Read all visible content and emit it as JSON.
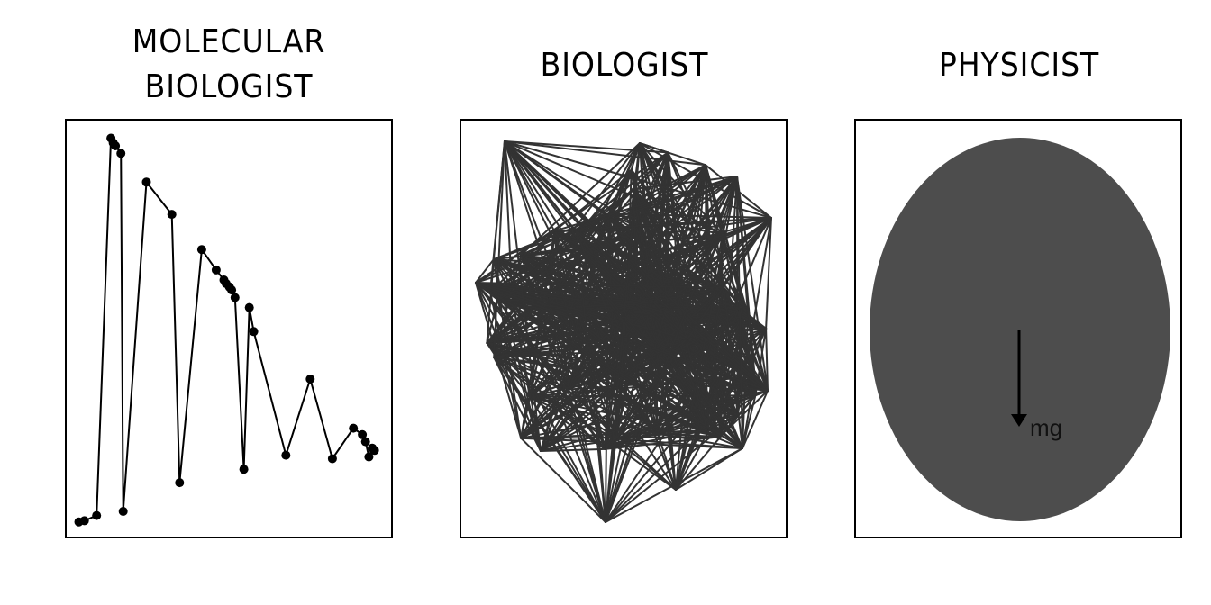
{
  "panels": [
    {
      "title_line1": "MOLECULAR",
      "title_line2": "BIOLOGIST"
    },
    {
      "title": "BIOLOGIST"
    },
    {
      "title": "PHYSICIST",
      "annotation": "mg"
    }
  ],
  "colors": {
    "line": "#000000",
    "network": "#333333",
    "ellipse": "#4d4d4d",
    "frame": "#000000"
  },
  "chart_data": [
    {
      "type": "line",
      "title": "MOLECULAR BIOLOGIST",
      "points_markers": true,
      "x": [
        0.3,
        0.8,
        1.9,
        3.2,
        3.4,
        3.6,
        4.1,
        4.3,
        6.4,
        8.7,
        9.4,
        11.4,
        12.7,
        13.4,
        13.6,
        13.9,
        14.1,
        14.4,
        15.2,
        15.7,
        16.1,
        19.0,
        21.2,
        23.2,
        25.1,
        25.9,
        26.2,
        26.5,
        26.8,
        27.0
      ],
      "y": [
        1.0,
        1.2,
        2.1,
        66.5,
        65.7,
        65.2,
        63.9,
        2.8,
        59.0,
        53.5,
        7.7,
        47.5,
        44.0,
        42.3,
        41.7,
        41.1,
        40.6,
        39.3,
        10.0,
        37.6,
        33.5,
        12.4,
        25.4,
        11.8,
        17.0,
        15.9,
        14.7,
        12.1,
        13.6,
        13.2
      ],
      "xlim": [
        -0.8,
        28.5
      ],
      "ylim": [
        -1.5,
        69.5
      ],
      "grid": false,
      "legend": "none"
    },
    {
      "type": "network",
      "title": "BIOLOGIST",
      "node_count": 54,
      "seed": 17
    },
    {
      "type": "ellipse",
      "title": "PHYSICIST",
      "arrow_label": "mg"
    }
  ]
}
